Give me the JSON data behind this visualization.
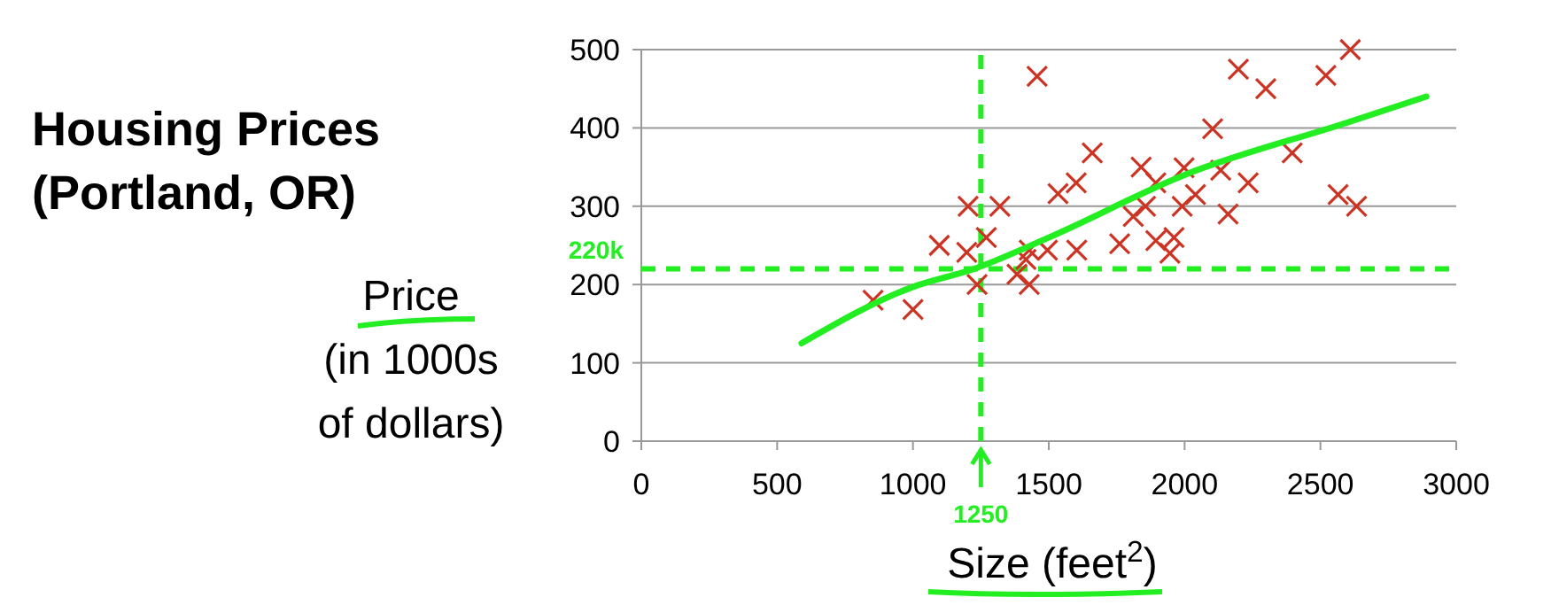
{
  "chart_data": {
    "type": "scatter",
    "title": "Housing Prices\n(Portland, OR)",
    "xlabel": "Size (feet$^{2}$)",
    "ylabel": "Price\n(in 1000s\nof dollars)",
    "xlim": [
      0,
      3000
    ],
    "xticks": [
      0,
      500,
      1000,
      1500,
      2000,
      2500,
      3000
    ],
    "ylim": [
      0,
      500
    ],
    "yticks": [
      0,
      100,
      200,
      300,
      400,
      500
    ],
    "grid": "y",
    "marker": "cross",
    "series": [
      {
        "color": "#cc3322",
        "x": [
          853,
          1000,
          1097,
          1203,
          1198,
          1270,
          1236,
          1320,
          1383,
          1416,
          1428,
          1428,
          1457,
          1495,
          1534,
          1601,
          1603,
          1660,
          1761,
          1811,
          1840,
          1856,
          1894,
          1894,
          1946,
          1961,
          1998,
          1991,
          2040,
          2103,
          2133,
          2160,
          2198,
          2234,
          2299,
          2396,
          2520,
          2565,
          2610,
          2633
        ],
        "values": [
          180,
          168,
          250,
          300,
          241,
          260,
          200,
          300,
          213,
          232,
          244,
          200,
          466,
          244,
          316,
          330,
          244,
          368,
          252,
          287,
          350,
          300,
          330,
          256,
          240,
          260,
          349,
          300,
          315,
          399,
          346,
          290,
          475,
          330,
          450,
          368,
          467,
          315,
          500,
          300
        ]
      },
      {
        "type": "line",
        "color": "#22ee22",
        "line_style": "solid",
        "marker": "none",
        "x": [
          590,
          1000,
          1225,
          1500,
          2000,
          2600,
          2890
        ],
        "values": [
          125,
          197,
          220,
          260,
          340,
          407,
          440
        ]
      }
    ],
    "ref_lines": [
      {
        "axis": "y",
        "value": 220,
        "label": "220k",
        "color": "#22ee22",
        "line_style": "dashed"
      },
      {
        "axis": "x",
        "value": 1250,
        "label": "1250",
        "color": "#22ee22",
        "line_style": "dashed"
      }
    ]
  }
}
